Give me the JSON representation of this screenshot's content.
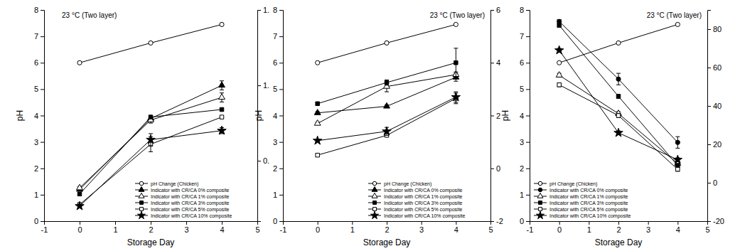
{
  "chart_data": [
    {
      "type": "line",
      "annotations": [
        "23 °C (Two layer)"
      ],
      "x_label": "Storage Day",
      "y_label": "pH",
      "x": [
        0,
        2,
        4
      ],
      "xlim": [
        -1,
        5
      ],
      "xticks": [
        -1,
        0,
        1,
        2,
        3,
        4,
        5
      ],
      "ylim": [
        0,
        8
      ],
      "yticks": [
        0,
        1,
        2,
        3,
        4,
        5,
        6,
        7,
        8
      ],
      "y2lim": [
        0.1,
        1.5
      ],
      "y2ticks": [
        {
          "value": 0.5,
          "label": "0."
        },
        {
          "value": 1.0,
          "label": "1."
        },
        {
          "value": 1.5,
          "label": "1."
        }
      ],
      "legend": "lower right",
      "series": [
        {
          "name": "pH Change (Chicken)",
          "color": "#000000",
          "marker": "open-circle",
          "values": [
            6.0,
            6.75,
            7.45
          ]
        },
        {
          "name": "Indicator with CR/CA 0% composite",
          "color": "#000000",
          "marker": "filled-triangle",
          "axis": "y2",
          "values": [
            0.31,
            0.78,
            1.0
          ],
          "errors": [
            0.01,
            0.02,
            0.03
          ]
        },
        {
          "name": "Indicator with CR/CA 1% composite",
          "color": "#000000",
          "marker": "open-triangle",
          "axis": "y2",
          "values": [
            0.32,
            0.77,
            0.92
          ],
          "errors": [
            0.01,
            0.02,
            0.03
          ]
        },
        {
          "name": "Indicator with CR/CA 3% composite",
          "color": "#000000",
          "marker": "filled-square",
          "axis": "y2",
          "values": [
            0.28,
            0.79,
            0.84
          ],
          "errors": [
            0.01,
            0.01,
            0.01
          ]
        },
        {
          "name": "Indicator with CR/CA 5% composite",
          "color": "#000000",
          "marker": "open-square",
          "axis": "y2",
          "values": [
            0.21,
            0.61,
            0.79
          ],
          "errors": [
            0.01,
            0.05,
            0.01
          ]
        },
        {
          "name": "Indicator with CR/CA 10% composite",
          "color": "#000000",
          "marker": "filled-star",
          "axis": "y2",
          "values": [
            0.2,
            0.64,
            0.7
          ],
          "errors": [
            0.01,
            0.04,
            0.02
          ]
        }
      ]
    },
    {
      "type": "line",
      "annotations": [
        "23 °C (Two layer)"
      ],
      "x_label": "Storage Day",
      "y_label": "pH",
      "x": [
        0,
        2,
        4
      ],
      "xlim": [
        -1,
        5
      ],
      "xticks": [
        -1,
        0,
        1,
        2,
        3,
        4,
        5
      ],
      "ylim": [
        0,
        8
      ],
      "yticks": [
        0,
        1,
        2,
        3,
        4,
        5,
        6,
        7,
        8
      ],
      "y2lim": [
        -2,
        6
      ],
      "y2ticks": [
        -2,
        0,
        2,
        4,
        6
      ],
      "legend": "lower right",
      "series": [
        {
          "name": "pH Change (Chicken)",
          "color": "#000000",
          "marker": "open-circle",
          "values": [
            6.0,
            6.75,
            7.45
          ]
        },
        {
          "name": "Indicator with CR/CA 0% composite",
          "color": "#000000",
          "marker": "filled-triangle",
          "axis": "y2",
          "values": [
            2.1,
            2.35,
            3.45
          ],
          "errors": [
            0.05,
            0.05,
            0.15
          ]
        },
        {
          "name": "Indicator with CR/CA 1% composite",
          "color": "#000000",
          "marker": "open-triangle",
          "axis": "y2",
          "values": [
            1.7,
            3.1,
            3.55
          ],
          "errors": [
            0.05,
            0.2,
            0.1
          ]
        },
        {
          "name": "Indicator with CR/CA 3% composite",
          "color": "#000000",
          "marker": "filled-square",
          "axis": "y2",
          "values": [
            2.45,
            3.25,
            4.0
          ],
          "errors": [
            0.05,
            0.1,
            0.55
          ]
        },
        {
          "name": "Indicator with CR/CA 5% composite",
          "color": "#000000",
          "marker": "open-square",
          "axis": "y2",
          "values": [
            0.5,
            1.25,
            2.65
          ],
          "errors": [
            0.05,
            0.05,
            0.2
          ]
        },
        {
          "name": "Indicator with CR/CA 10% composite",
          "color": "#000000",
          "marker": "filled-star",
          "axis": "y2",
          "values": [
            1.05,
            1.4,
            2.7
          ],
          "errors": [
            0.05,
            0.15,
            0.2
          ]
        }
      ]
    },
    {
      "type": "line",
      "annotations": [
        "23 °C (Two layer)"
      ],
      "x_label": "Storage Day",
      "y_label": "pH",
      "x": [
        0,
        2,
        4
      ],
      "xlim": [
        -1,
        5
      ],
      "xticks": [
        -1,
        0,
        1,
        2,
        3,
        4,
        5
      ],
      "ylim": [
        0,
        8
      ],
      "yticks": [
        0,
        1,
        2,
        3,
        4,
        5,
        6,
        7,
        8
      ],
      "y2lim": [
        -20,
        90
      ],
      "y2ticks": [
        -20,
        0,
        20,
        40,
        60,
        80
      ],
      "legend": "lower left",
      "series": [
        {
          "name": "pH Change (Chicken)",
          "color": "#000000",
          "marker": "open-circle",
          "values": [
            6.0,
            6.75,
            7.45
          ]
        },
        {
          "name": "Indicator with CR/CA 0% composite",
          "color": "#000000",
          "marker": "filled-circle",
          "axis": "y2",
          "values": [
            84,
            54,
            21
          ],
          "errors": [
            1,
            3,
            3
          ]
        },
        {
          "name": "Indicator with CR/CA 1% composite",
          "color": "#000000",
          "marker": "open-triangle",
          "axis": "y2",
          "values": [
            56,
            36,
            10
          ],
          "errors": [
            1,
            1,
            1
          ]
        },
        {
          "name": "Indicator with CR/CA 3% composite",
          "color": "#000000",
          "marker": "filled-square",
          "axis": "y2",
          "values": [
            82,
            45,
            9
          ],
          "errors": [
            1,
            1,
            1
          ]
        },
        {
          "name": "Indicator with CR/CA 5% composite",
          "color": "#000000",
          "marker": "open-square",
          "axis": "y2",
          "values": [
            51,
            35,
            7
          ],
          "errors": [
            1,
            1,
            1
          ]
        },
        {
          "name": "Indicator with CR/CA 10% composite",
          "color": "#000000",
          "marker": "filled-star",
          "axis": "y2",
          "values": [
            69,
            26,
            12
          ],
          "errors": [
            1,
            1,
            1
          ]
        }
      ]
    }
  ]
}
